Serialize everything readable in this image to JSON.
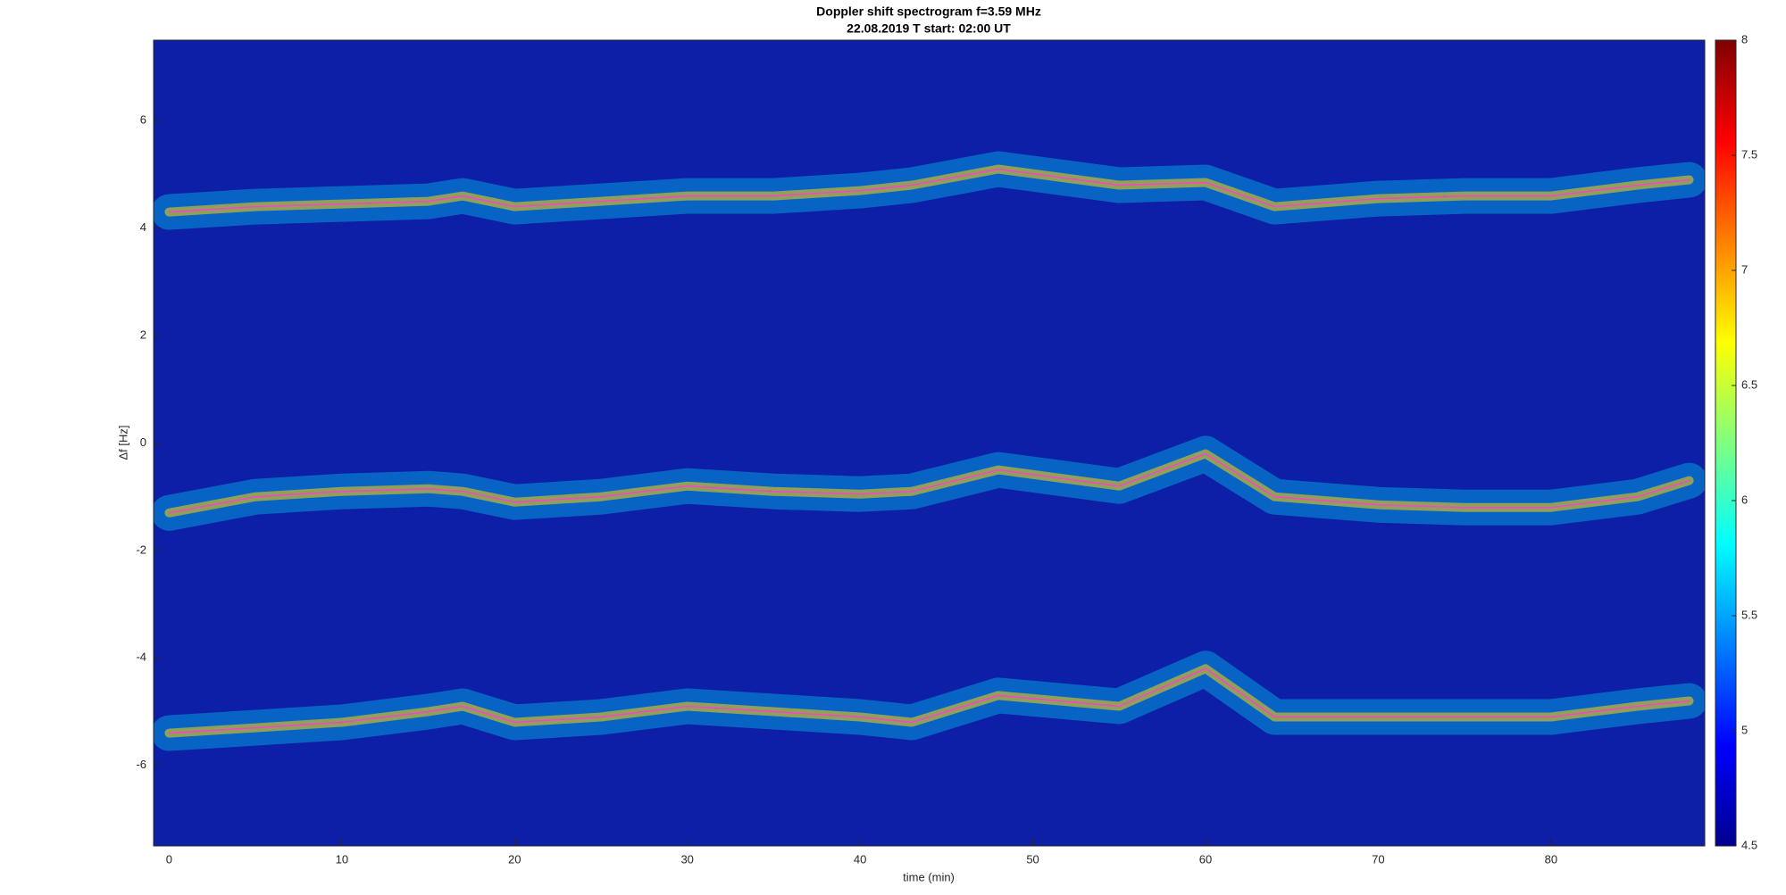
{
  "chart_data": {
    "type": "spectrogram",
    "title": "Doppler shift spectrogram f=3.59 MHz",
    "subtitle": "22.08.2019   T start: 02:00 UT",
    "x_label": "time (min)",
    "y_label": "Δf [Hz]",
    "background_color": "#0c1fa6",
    "x": [
      0,
      5,
      10,
      15,
      17,
      20,
      25,
      30,
      35,
      40,
      43,
      48,
      55,
      60,
      64,
      70,
      75,
      80,
      85,
      88
    ],
    "series": [
      {
        "color": "#ff3fd0",
        "values": [
          4.3,
          4.4,
          4.45,
          4.5,
          4.6,
          4.4,
          4.5,
          4.6,
          4.6,
          4.7,
          4.8,
          5.1,
          4.8,
          4.85,
          4.4,
          4.55,
          4.6,
          4.6,
          4.8,
          4.9
        ]
      },
      {
        "color": "#ff3fd0",
        "values": [
          -1.3,
          -1.0,
          -0.9,
          -0.85,
          -0.9,
          -1.1,
          -1.0,
          -0.8,
          -0.9,
          -0.95,
          -0.9,
          -0.5,
          -0.8,
          -0.2,
          -1.0,
          -1.15,
          -1.2,
          -1.2,
          -1.0,
          -0.7
        ]
      },
      {
        "color": "#ff3fd0",
        "values": [
          -5.4,
          -5.3,
          -5.2,
          -5.0,
          -4.9,
          -5.2,
          -5.1,
          -4.9,
          -5.0,
          -5.1,
          -5.2,
          -4.7,
          -4.9,
          -4.2,
          -5.1,
          -5.1,
          -5.1,
          -5.1,
          -4.9,
          -4.8
        ]
      }
    ],
    "xlim": [
      -0.9,
      88.9
    ],
    "ylim": [
      -7.5,
      7.5
    ],
    "xticks": [
      0,
      10,
      20,
      30,
      40,
      50,
      60,
      70,
      80
    ],
    "yticks": [
      -6,
      -4,
      -2,
      0,
      2,
      4,
      6
    ],
    "colorbar": {
      "clim": [
        4.5,
        8
      ],
      "ticks": [
        4.5,
        5,
        5.5,
        6,
        6.5,
        7,
        7.5,
        8
      ],
      "colors": [
        "#00008f",
        "#0000ff",
        "#0080ff",
        "#00ffff",
        "#80ff80",
        "#ffff00",
        "#ff8000",
        "#ff0000",
        "#800000"
      ]
    }
  }
}
